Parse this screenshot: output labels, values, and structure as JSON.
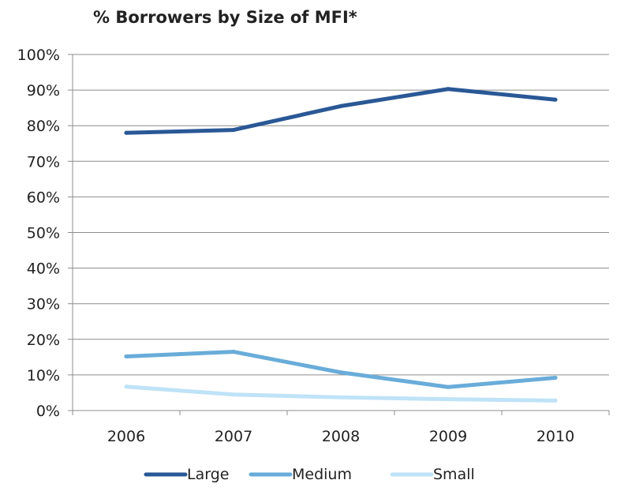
{
  "chart_data": {
    "type": "line",
    "title": "% Borrowers by Size of MFI*",
    "xlabel": "",
    "ylabel": "",
    "categories": [
      "2006",
      "2007",
      "2008",
      "2009",
      "2010"
    ],
    "ylim": [
      0,
      100
    ],
    "yticks": [
      0,
      10,
      20,
      30,
      40,
      50,
      60,
      70,
      80,
      90,
      100
    ],
    "ytick_labels": [
      "0%",
      "10%",
      "20%",
      "30%",
      "40%",
      "50%",
      "60%",
      "70%",
      "80%",
      "90%",
      "100%"
    ],
    "grid": true,
    "legend_position": "bottom",
    "series": [
      {
        "name": "Large",
        "color": "#2a5896",
        "values": [
          78,
          78.8,
          85.5,
          90.3,
          87.3
        ]
      },
      {
        "name": "Medium",
        "color": "#69acd9",
        "values": [
          15.2,
          16.5,
          10.7,
          6.6,
          9.2
        ]
      },
      {
        "name": "Small",
        "color": "#bfe3f7",
        "values": [
          6.7,
          4.5,
          3.7,
          3.2,
          2.8
        ]
      }
    ]
  }
}
